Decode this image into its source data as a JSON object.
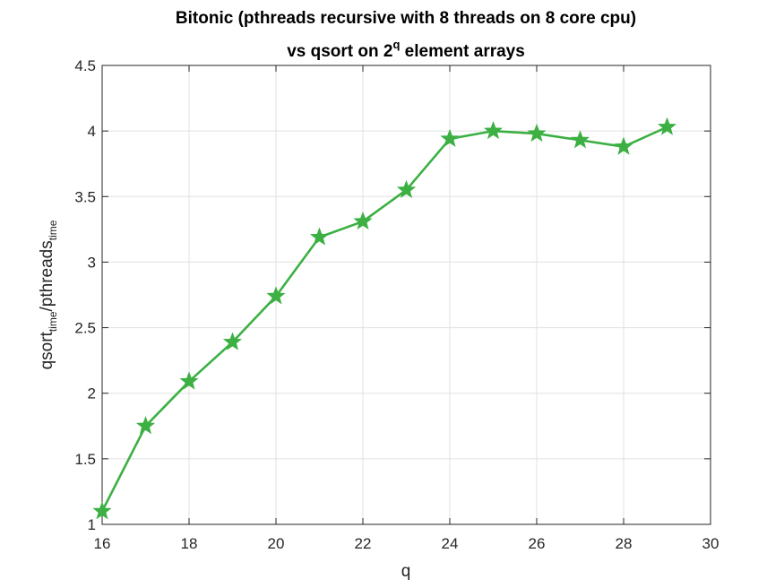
{
  "chart_data": {
    "type": "line",
    "title_line1": "Bitonic (pthreads recursive with 8 threads on 8 core cpu)",
    "title_line2_prefix": "vs qsort on 2",
    "title_line2_sup": "q",
    "title_line2_suffix": " element arrays",
    "xlabel": "q",
    "ylabel_part1": "qsort",
    "ylabel_sub1": "time",
    "ylabel_part2": "/pthreads",
    "ylabel_sub2": "time",
    "xlim": [
      16,
      30
    ],
    "ylim": [
      1,
      4.5
    ],
    "xticks": [
      16,
      18,
      20,
      22,
      24,
      26,
      28,
      30
    ],
    "yticks": [
      1,
      1.5,
      2,
      2.5,
      3,
      3.5,
      4,
      4.5
    ],
    "xtick_labels": [
      "16",
      "18",
      "20",
      "22",
      "24",
      "26",
      "28",
      "30"
    ],
    "ytick_labels": [
      "1",
      "1.5",
      "2",
      "2.5",
      "3",
      "3.5",
      "4",
      "4.5"
    ],
    "grid": true,
    "series": [
      {
        "color": "#3cb043",
        "marker": "star",
        "x": [
          16,
          17,
          18,
          19,
          20,
          21,
          22,
          23,
          24,
          25,
          26,
          27,
          28,
          29
        ],
        "y": [
          1.1,
          1.75,
          2.09,
          2.39,
          2.74,
          3.19,
          3.31,
          3.55,
          3.94,
          4.0,
          3.98,
          3.93,
          3.88,
          4.03
        ]
      }
    ]
  }
}
